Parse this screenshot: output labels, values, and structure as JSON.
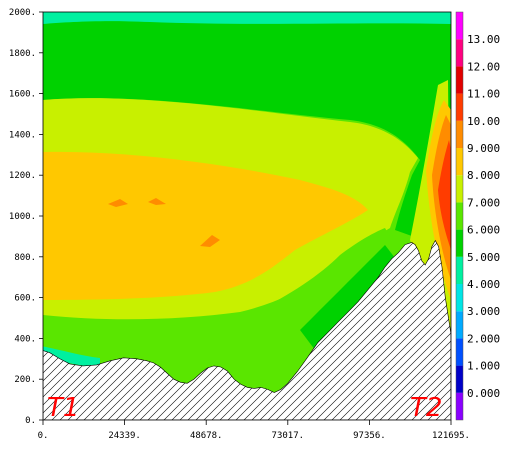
{
  "chart_data": {
    "type": "contour",
    "x_ticks": [
      "0.",
      "24339.",
      "48678.",
      "73017.",
      "97356.",
      "121695."
    ],
    "y_ticks": [
      "0.",
      "200.",
      "400.",
      "600.",
      "800.",
      "1000.",
      "1200.",
      "1400.",
      "1600.",
      "1800.",
      "2000."
    ],
    "xlim": [
      0,
      121695
    ],
    "ylim": [
      0,
      2000
    ],
    "colorbar": {
      "labels": [
        "0.000",
        "1.000",
        "2.000",
        "3.000",
        "4.000",
        "5.000",
        "6.000",
        "7.000",
        "8.000",
        "9.000",
        "10.00",
        "11.00",
        "12.00",
        "13.00"
      ],
      "colors": [
        "#8a00ff",
        "#0000c8",
        "#0050ff",
        "#00aaff",
        "#00e5e5",
        "#00f0a0",
        "#00d200",
        "#5ae600",
        "#c8f000",
        "#ffc800",
        "#ff8c00",
        "#ff3c00",
        "#e10000",
        "#ff0080",
        "#ff00ff"
      ]
    },
    "terrain": {
      "x": [
        0,
        2000,
        5000,
        8000,
        12000,
        16000,
        20000,
        24000,
        28000,
        31000,
        33000,
        35000,
        37000,
        39000,
        41000,
        43000,
        45000,
        47000,
        49000,
        51000,
        53000,
        55000,
        57000,
        59000,
        61000,
        63000,
        65000,
        67000,
        69000,
        71000,
        73000,
        76000,
        79000,
        82000,
        85000,
        88000,
        91000,
        94000,
        97000,
        100000,
        102000,
        104000,
        106000,
        108000,
        110000,
        111000,
        112000,
        113000,
        114000,
        115000,
        116000,
        117000,
        118000,
        119000,
        120000,
        121695
      ],
      "y": [
        340,
        330,
        300,
        275,
        265,
        270,
        290,
        305,
        300,
        290,
        280,
        260,
        230,
        200,
        185,
        180,
        200,
        230,
        255,
        265,
        260,
        240,
        200,
        175,
        160,
        155,
        160,
        150,
        135,
        150,
        180,
        240,
        310,
        380,
        430,
        480,
        530,
        580,
        640,
        700,
        750,
        790,
        820,
        860,
        870,
        860,
        830,
        780,
        760,
        790,
        850,
        880,
        850,
        750,
        600,
        420
      ]
    },
    "annotations": [
      "T1",
      "T2"
    ]
  }
}
